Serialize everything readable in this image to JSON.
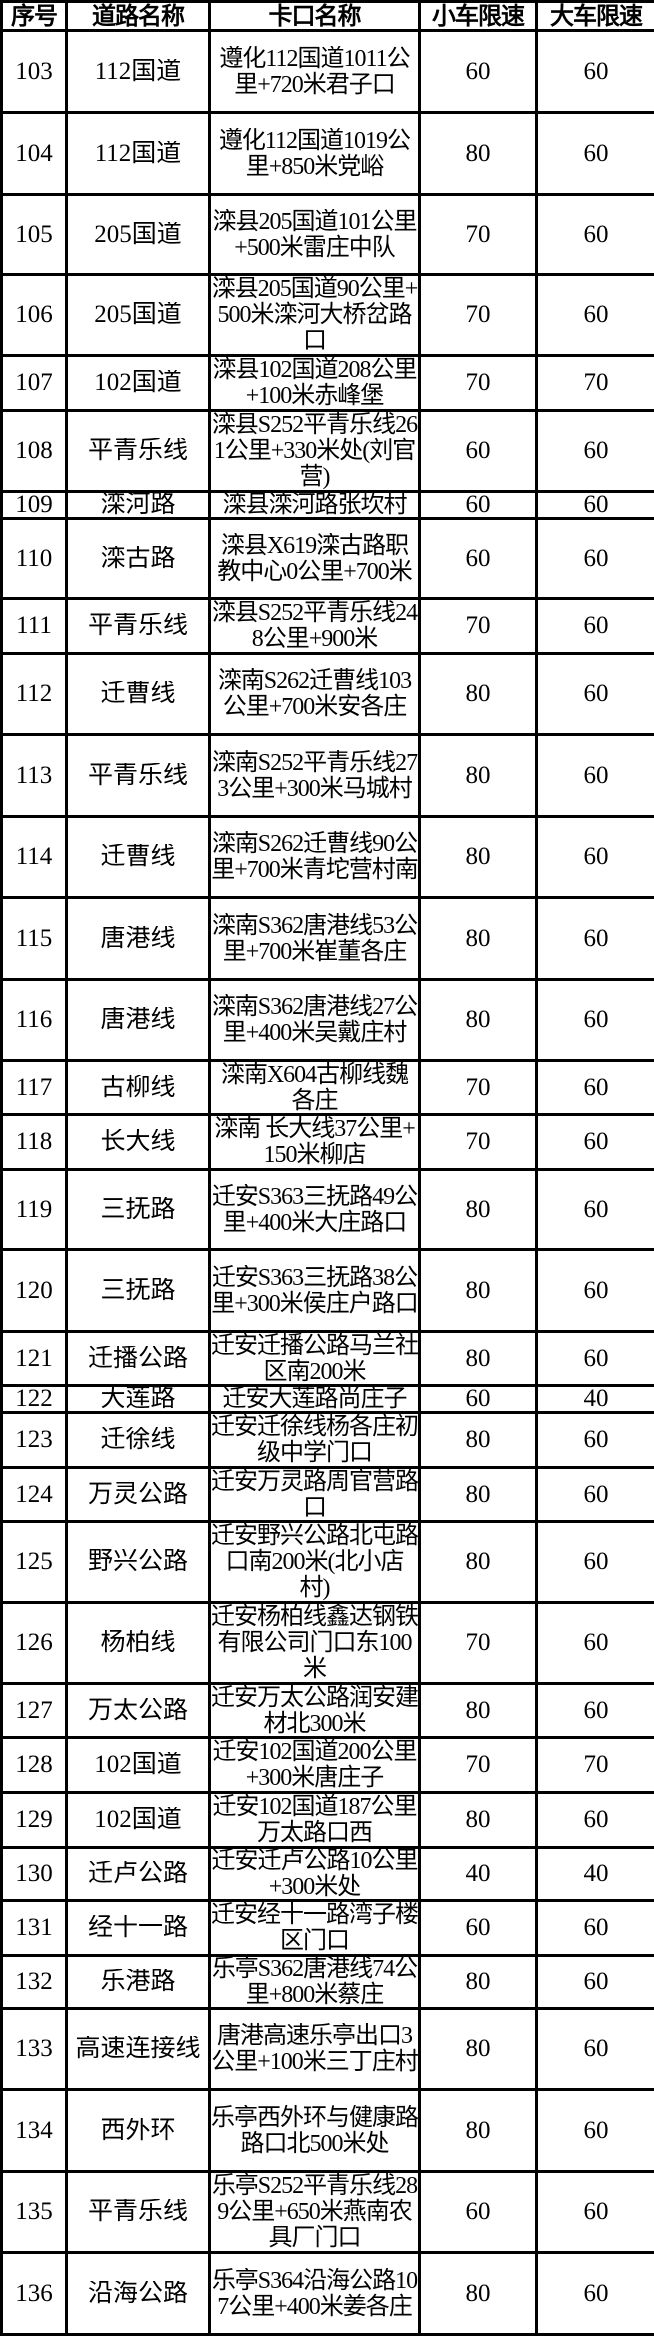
{
  "table": {
    "headers": [
      "序号",
      "道路名称",
      "卡口名称",
      "小车限速",
      "大车限速"
    ],
    "rows": [
      {
        "no": "103",
        "road": "112国道",
        "checkpoint": "遵化112国道1011公里+720米君子口",
        "car": "60",
        "truck": "60"
      },
      {
        "no": "104",
        "road": "112国道",
        "checkpoint": "遵化112国道1019公里+850米党峪",
        "car": "80",
        "truck": "60"
      },
      {
        "no": "105",
        "road": "205国道",
        "checkpoint": "滦县205国道101公里+500米雷庄中队",
        "car": "70",
        "truck": "60"
      },
      {
        "no": "106",
        "road": "205国道",
        "checkpoint": "滦县205国道90公里+500米滦河大桥岔路口",
        "car": "70",
        "truck": "60"
      },
      {
        "no": "107",
        "road": "102国道",
        "checkpoint": "滦县102国道208公里+100米赤峰堡",
        "car": "70",
        "truck": "70"
      },
      {
        "no": "108",
        "road": "平青乐线",
        "checkpoint": "滦县S252平青乐线261公里+330米处(刘官营)",
        "car": "60",
        "truck": "60"
      },
      {
        "no": "109",
        "road": "滦河路",
        "checkpoint": "滦县滦河路张坎村",
        "car": "60",
        "truck": "60"
      },
      {
        "no": "110",
        "road": "滦古路",
        "checkpoint": "滦县X619滦古路职教中心0公里+700米",
        "car": "60",
        "truck": "60"
      },
      {
        "no": "111",
        "road": "平青乐线",
        "checkpoint": "滦县S252平青乐线248公里+900米",
        "car": "70",
        "truck": "60"
      },
      {
        "no": "112",
        "road": "迁曹线",
        "checkpoint": "滦南S262迁曹线103公里+700米安各庄",
        "car": "80",
        "truck": "60"
      },
      {
        "no": "113",
        "road": "平青乐线",
        "checkpoint": "滦南S252平青乐线273公里+300米马城村",
        "car": "80",
        "truck": "60"
      },
      {
        "no": "114",
        "road": "迁曹线",
        "checkpoint": "滦南S262迁曹线90公里+700米青坨营村南",
        "car": "80",
        "truck": "60"
      },
      {
        "no": "115",
        "road": "唐港线",
        "checkpoint": "滦南S362唐港线53公里+700米崔董各庄",
        "car": "80",
        "truck": "60"
      },
      {
        "no": "116",
        "road": "唐港线",
        "checkpoint": "滦南S362唐港线27公里+400米吴戴庄村",
        "car": "80",
        "truck": "60"
      },
      {
        "no": "117",
        "road": "古柳线",
        "checkpoint": "滦南X604古柳线魏各庄",
        "car": "70",
        "truck": "60"
      },
      {
        "no": "118",
        "road": "长大线",
        "checkpoint": "滦南 长大线37公里+150米柳店",
        "car": "70",
        "truck": "60"
      },
      {
        "no": "119",
        "road": "三抚路",
        "checkpoint": "迁安S363三抚路49公里+400米大庄路口",
        "car": "80",
        "truck": "60"
      },
      {
        "no": "120",
        "road": "三抚路",
        "checkpoint": "迁安S363三抚路38公里+300米侯庄户路口",
        "car": "80",
        "truck": "60"
      },
      {
        "no": "121",
        "road": "迁播公路",
        "checkpoint": "迁安迁播公路马兰社区南200米",
        "car": "80",
        "truck": "60"
      },
      {
        "no": "122",
        "road": "大莲路",
        "checkpoint": "迁安大莲路尚庄子",
        "car": "60",
        "truck": "40"
      },
      {
        "no": "123",
        "road": "迁徐线",
        "checkpoint": "迁安迁徐线杨各庄初级中学门口",
        "car": "80",
        "truck": "60"
      },
      {
        "no": "124",
        "road": "万灵公路",
        "checkpoint": "迁安万灵路周官营路口",
        "car": "80",
        "truck": "60"
      },
      {
        "no": "125",
        "road": "野兴公路",
        "checkpoint": "迁安野兴公路北屯路口南200米(北小店村)",
        "car": "80",
        "truck": "60"
      },
      {
        "no": "126",
        "road": "杨柏线",
        "checkpoint": "迁安杨柏线鑫达钢铁有限公司门口东100米",
        "car": "70",
        "truck": "60"
      },
      {
        "no": "127",
        "road": "万太公路",
        "checkpoint": "迁安万太公路润安建材北300米",
        "car": "80",
        "truck": "60"
      },
      {
        "no": "128",
        "road": "102国道",
        "checkpoint": "迁安102国道200公里+300米唐庄子",
        "car": "70",
        "truck": "70"
      },
      {
        "no": "129",
        "road": "102国道",
        "checkpoint": "迁安102国道187公里万太路口西",
        "car": "80",
        "truck": "60"
      },
      {
        "no": "130",
        "road": "迁卢公路",
        "checkpoint": "迁安迁卢公路10公里+300米处",
        "car": "40",
        "truck": "40"
      },
      {
        "no": "131",
        "road": "经十一路",
        "checkpoint": "迁安经十一路湾子楼区门口",
        "car": "60",
        "truck": "60"
      },
      {
        "no": "132",
        "road": "乐港路",
        "checkpoint": "乐亭S362唐港线74公里+800米蔡庄",
        "car": "80",
        "truck": "60"
      },
      {
        "no": "133",
        "road": "高速连接线",
        "checkpoint": "唐港高速乐亭出口3公里+100米三丁庄村",
        "car": "80",
        "truck": "60"
      },
      {
        "no": "134",
        "road": "西外环",
        "checkpoint": "乐亭西外环与健康路路口北500米处",
        "car": "80",
        "truck": "60"
      },
      {
        "no": "135",
        "road": "平青乐线",
        "checkpoint": "乐亭S252平青乐线289公里+650米燕南农具厂门口",
        "car": "60",
        "truck": "60"
      },
      {
        "no": "136",
        "road": "沿海公路",
        "checkpoint": "乐亭S364沿海公路107公里+400米姜各庄",
        "car": "80",
        "truck": "60"
      }
    ]
  }
}
